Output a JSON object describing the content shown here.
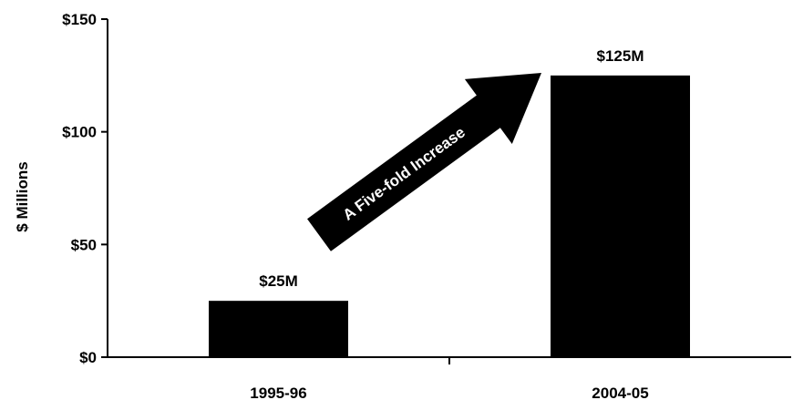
{
  "chart_data": {
    "type": "bar",
    "categories": [
      "1995-96",
      "2004-05"
    ],
    "values": [
      25,
      125
    ],
    "data_labels": [
      "$25M",
      "$125M"
    ],
    "ylabel": "$ Millions",
    "ylim": [
      0,
      150
    ],
    "yticks": [
      0,
      50,
      100,
      150
    ],
    "ytick_labels": [
      "$0",
      "$50",
      "$100",
      "$150"
    ],
    "grid": false,
    "bar_color": "#000000",
    "annotation": "A Five-fold Increase"
  }
}
